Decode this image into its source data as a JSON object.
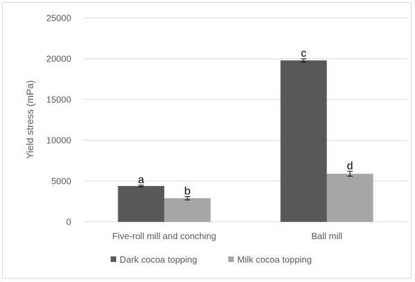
{
  "chart_data": {
    "type": "bar",
    "title": "",
    "xlabel": "",
    "ylabel": "Yield stress (mPa)",
    "ylim": [
      0,
      25000
    ],
    "yticks": [
      0,
      5000,
      10000,
      15000,
      20000,
      25000
    ],
    "grid": true,
    "legend_position": "bottom",
    "categories": [
      "Five-roll mill and conching",
      "Ball mill"
    ],
    "series": [
      {
        "name": "Dark cocoa topping",
        "color": "#595959",
        "values": [
          4400,
          19800
        ],
        "errors": [
          100,
          200
        ],
        "labels": [
          "a",
          "c"
        ]
      },
      {
        "name": "Milk cocoa topping",
        "color": "#a6a6a6",
        "values": [
          2900,
          5900
        ],
        "errors": [
          200,
          300
        ],
        "labels": [
          "b",
          "d"
        ]
      }
    ]
  }
}
